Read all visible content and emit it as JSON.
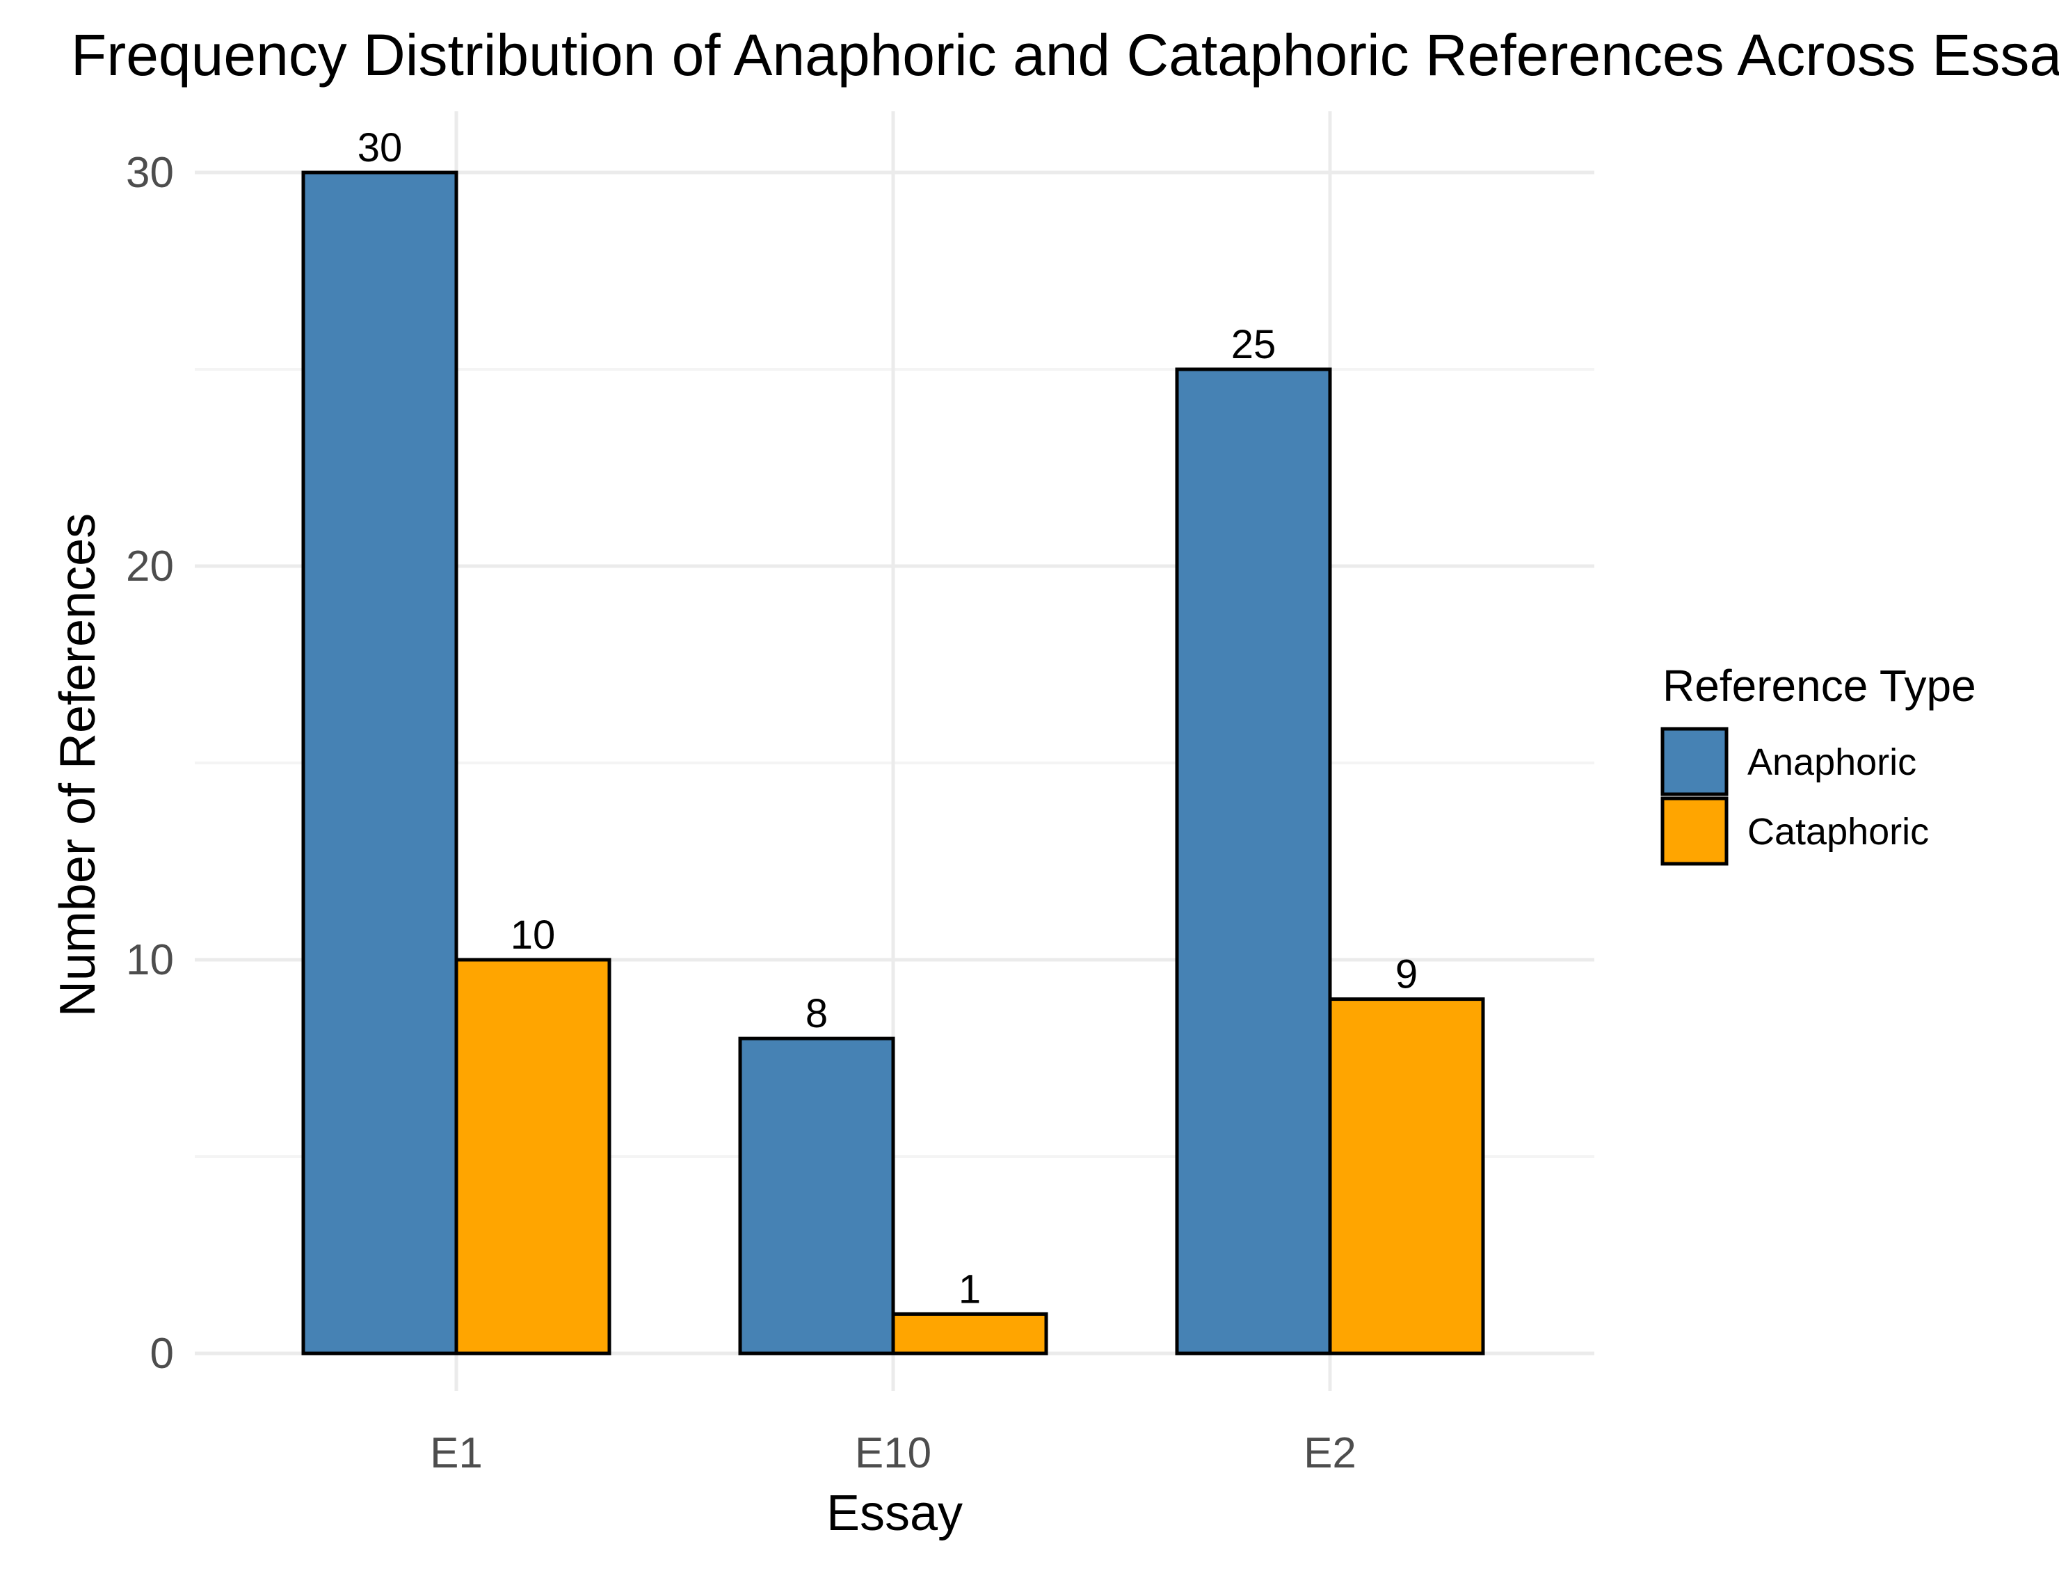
{
  "chart_data": {
    "type": "bar",
    "title": "Frequency Distribution of Anaphoric and Cataphoric References Across Essays",
    "xlabel": "Essay",
    "ylabel": "Number of References",
    "categories": [
      "E1",
      "E10",
      "E2"
    ],
    "series": [
      {
        "name": "Anaphoric",
        "values": [
          30,
          8,
          25
        ],
        "color": "#4682B4"
      },
      {
        "name": "Cataphoric",
        "values": [
          10,
          1,
          9
        ],
        "color": "#FFA500"
      }
    ],
    "ylim": [
      0,
      30
    ],
    "yticks": [
      0,
      10,
      20,
      30
    ],
    "grid": true,
    "legend": {
      "title": "Reference Type",
      "position": "right"
    },
    "data_labels": true
  }
}
